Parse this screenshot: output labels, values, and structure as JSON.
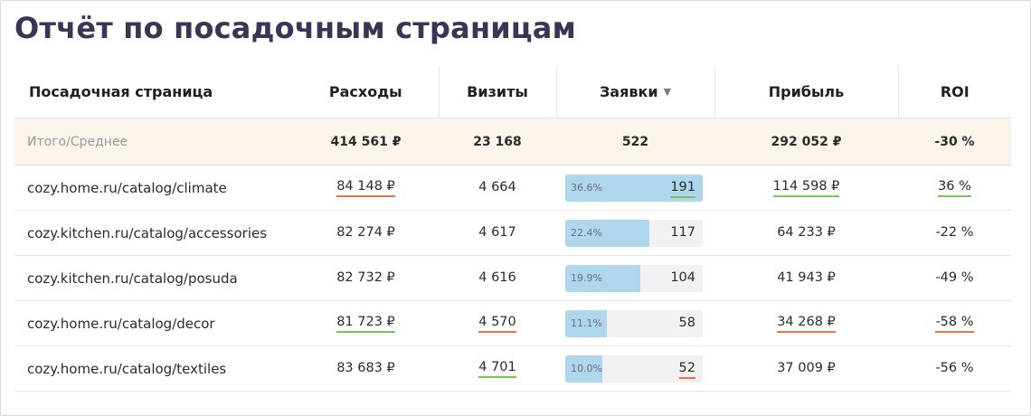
{
  "title": "Отчёт по посадочным страницам",
  "columns": {
    "page": "Посадочная страница",
    "cost": "Расходы",
    "visits": "Визиты",
    "leads": "Заявки",
    "profit": "Прибыль",
    "roi": "ROI"
  },
  "sort_indicator": "▼",
  "total": {
    "label": "Итого/Среднее",
    "cost": "414 561 ₽",
    "visits": "23 168",
    "leads": "522",
    "profit": "292 052 ₽",
    "roi": "-30 %"
  },
  "rows": [
    {
      "page": "cozy.home.ru/catalog/climate",
      "cost": "84 148 ₽",
      "cost_mark": "red",
      "visits": "4 664",
      "visits_mark": "",
      "leads_pct": "36.6%",
      "leads_share": 0.366,
      "leads": "191",
      "leads_mark": "green",
      "profit": "114 598 ₽",
      "profit_mark": "green",
      "roi": "36 %",
      "roi_mark": "green"
    },
    {
      "page": "cozy.kitchen.ru/catalog/accessories",
      "cost": "82 274 ₽",
      "cost_mark": "",
      "visits": "4 617",
      "visits_mark": "",
      "leads_pct": "22.4%",
      "leads_share": 0.224,
      "leads": "117",
      "leads_mark": "",
      "profit": "64 233 ₽",
      "profit_mark": "",
      "roi": "-22 %",
      "roi_mark": ""
    },
    {
      "page": "cozy.kitchen.ru/catalog/posuda",
      "cost": "82 732 ₽",
      "cost_mark": "",
      "visits": "4 616",
      "visits_mark": "",
      "leads_pct": "19.9%",
      "leads_share": 0.199,
      "leads": "104",
      "leads_mark": "",
      "profit": "41 943 ₽",
      "profit_mark": "",
      "roi": "-49 %",
      "roi_mark": ""
    },
    {
      "page": "cozy.home.ru/catalog/decor",
      "cost": "81 723 ₽",
      "cost_mark": "green",
      "visits": "4 570",
      "visits_mark": "red",
      "leads_pct": "11.1%",
      "leads_share": 0.111,
      "leads": "58",
      "leads_mark": "",
      "profit": "34 268 ₽",
      "profit_mark": "red",
      "roi": "-58 %",
      "roi_mark": "red"
    },
    {
      "page": "cozy.home.ru/catalog/textiles",
      "cost": "83 683 ₽",
      "cost_mark": "",
      "visits": "4 701",
      "visits_mark": "green",
      "leads_pct": "10.0%",
      "leads_share": 0.1,
      "leads": "52",
      "leads_mark": "red",
      "profit": "37 009 ₽",
      "profit_mark": "",
      "roi": "-56 %",
      "roi_mark": ""
    }
  ],
  "colors": {
    "title": "#3a3555",
    "total_row_bg": "#fbf4ea",
    "bar_fill": "#aed7ee",
    "bar_track": "#f3f0f4",
    "underline_green": "#7cc35a",
    "underline_red": "#e2744b"
  }
}
